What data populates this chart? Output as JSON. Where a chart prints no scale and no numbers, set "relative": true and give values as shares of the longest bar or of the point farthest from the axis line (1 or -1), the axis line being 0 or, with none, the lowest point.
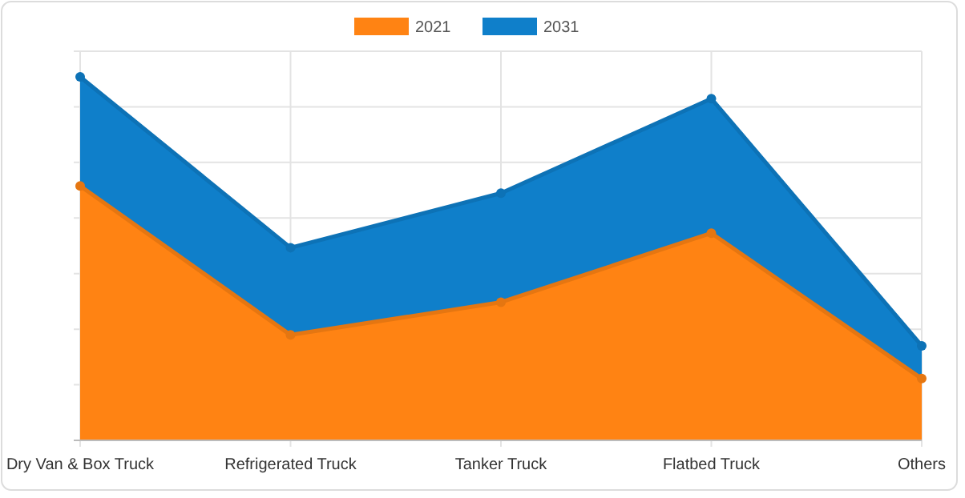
{
  "chart_data": {
    "type": "area",
    "relative": true,
    "categories": [
      "Dry Van & Box Truck",
      "Refrigerated Truck",
      "Tanker Truck",
      "Flatbed Truck",
      "Others"
    ],
    "series": [
      {
        "name": "2021",
        "color": "#ff8313",
        "values": [
          0.7,
          0.29,
          0.38,
          0.57,
          0.17
        ]
      },
      {
        "name": "2031",
        "color": "#0f7fca",
        "values": [
          1,
          0.53,
          0.68,
          0.94,
          0.26
        ]
      }
    ],
    "grid": true,
    "legend": "top",
    "marker": "circle"
  }
}
